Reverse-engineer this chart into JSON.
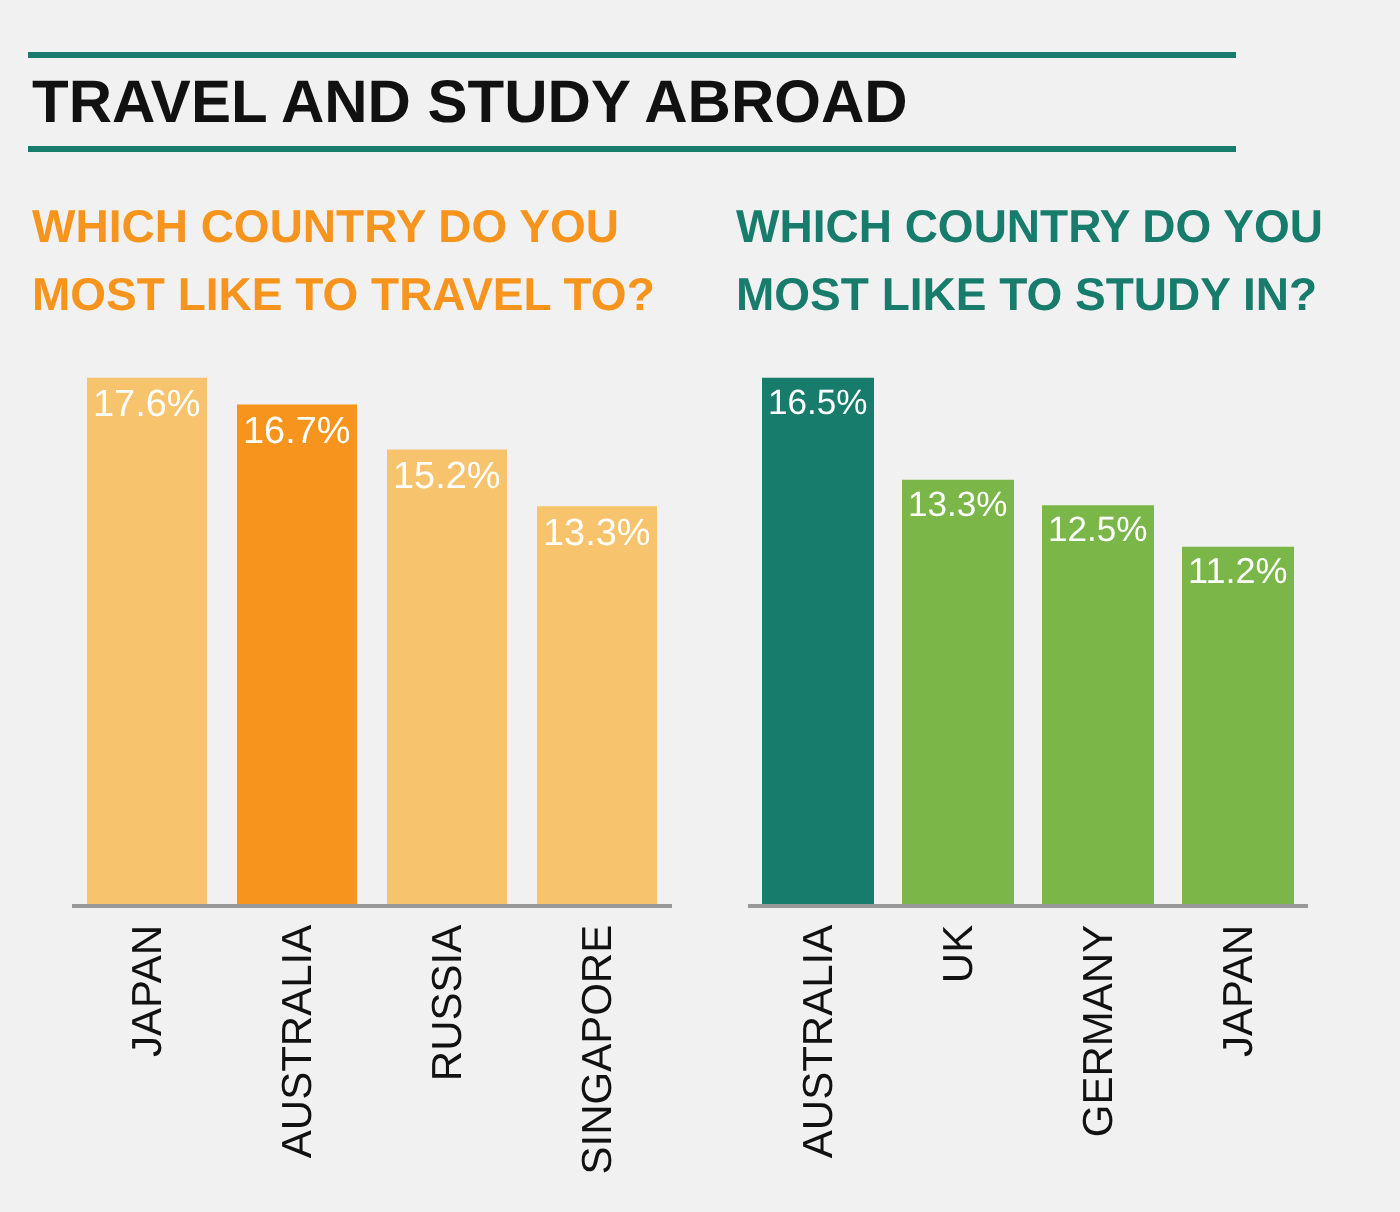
{
  "chart_data": [
    {
      "type": "bar",
      "title": "TRAVEL AND STUDY ABROAD",
      "subtitle": "WHICH COUNTRY DO YOU MOST LIKE TO TRAVEL TO?",
      "categories": [
        "JAPAN",
        "AUSTRALIA",
        "RUSSIA",
        "SINGAPORE"
      ],
      "values": [
        17.6,
        16.7,
        15.2,
        13.3
      ],
      "value_labels": [
        "17.6%",
        "16.7%",
        "15.2%",
        "13.3%"
      ],
      "colors": [
        "#f7c36d",
        "#f7941d",
        "#f7c36d",
        "#f7c36d"
      ]
    },
    {
      "type": "bar",
      "subtitle": "WHICH COUNTRY DO YOU MOST LIKE TO STUDY IN?",
      "categories": [
        "AUSTRALIA",
        "UK",
        "GERMANY",
        "JAPAN"
      ],
      "values": [
        16.5,
        13.3,
        12.5,
        11.2
      ],
      "value_labels": [
        "16.5%",
        "13.3%",
        "12.5%",
        "11.2%"
      ],
      "colors": [
        "#177c6c",
        "#7ab648",
        "#7ab648",
        "#7ab648"
      ]
    }
  ]
}
